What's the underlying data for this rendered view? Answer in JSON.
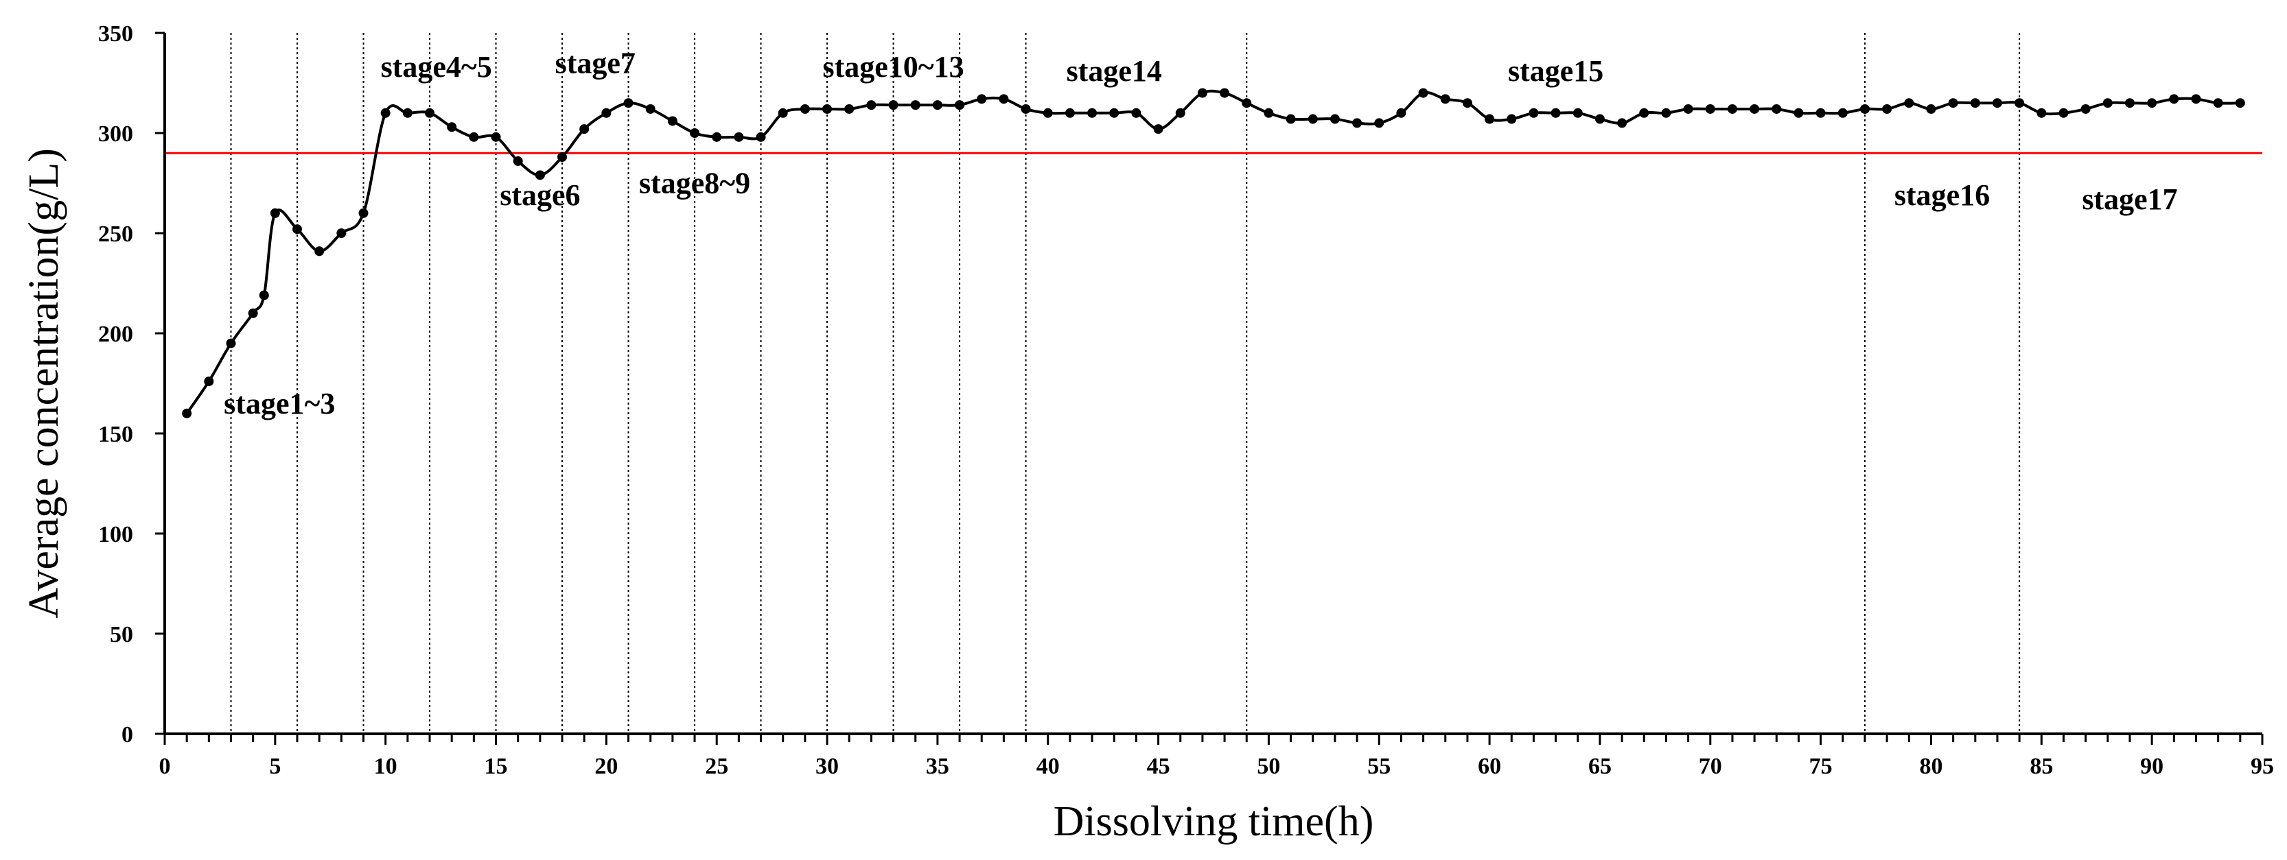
{
  "chart_data": {
    "type": "line",
    "title": "",
    "xlabel": "Dissolving time(h)",
    "ylabel": "Average concentration(g/L)",
    "xlim": [
      0,
      95
    ],
    "ylim": [
      0,
      350
    ],
    "x_ticks": [
      0,
      5,
      10,
      15,
      20,
      25,
      30,
      35,
      40,
      45,
      50,
      55,
      60,
      65,
      70,
      75,
      80,
      85,
      90,
      95
    ],
    "y_ticks": [
      0,
      50,
      100,
      150,
      200,
      250,
      300,
      350
    ],
    "grid": false,
    "line_color": "#000000",
    "reference_line": {
      "y": 290,
      "color": "#ff0000"
    },
    "stage_boundaries": [
      3,
      6,
      9,
      12,
      15,
      18,
      21,
      24,
      27,
      30,
      33,
      36,
      39,
      49,
      77,
      84
    ],
    "stage_labels": [
      {
        "text": "stage1~3",
        "x": 5.2,
        "y": 160
      },
      {
        "text": "stage4~5",
        "x": 12.3,
        "y": 328
      },
      {
        "text": "stage6",
        "x": 17.0,
        "y": 264
      },
      {
        "text": "stage7",
        "x": 19.5,
        "y": 330
      },
      {
        "text": "stage8~9",
        "x": 24.0,
        "y": 270
      },
      {
        "text": "stage10~13",
        "x": 33.0,
        "y": 328
      },
      {
        "text": "stage14",
        "x": 43.0,
        "y": 326
      },
      {
        "text": "stage15",
        "x": 63.0,
        "y": 326
      },
      {
        "text": "stage16",
        "x": 80.5,
        "y": 264
      },
      {
        "text": "stage17",
        "x": 89.0,
        "y": 262
      }
    ],
    "series": [
      {
        "x": [
          1,
          2,
          3,
          4,
          4.5,
          5,
          6,
          7,
          8,
          9,
          10,
          11,
          12,
          13,
          14,
          15,
          16,
          17,
          18,
          19,
          20,
          21,
          22,
          23,
          24,
          25,
          26,
          27,
          28,
          29,
          30,
          31,
          32,
          33,
          34,
          35,
          36,
          37,
          38,
          39,
          40,
          41,
          42,
          43,
          44,
          45,
          46,
          47,
          48,
          49,
          50,
          51,
          52,
          53,
          54,
          55,
          56,
          57,
          58,
          59,
          60,
          61,
          62,
          63,
          64,
          65,
          66,
          67,
          68,
          69,
          70,
          71,
          72,
          73,
          74,
          75,
          76,
          77,
          78,
          79,
          80,
          81,
          82,
          83,
          84,
          85,
          86,
          87,
          88,
          89,
          90,
          91,
          92,
          93,
          94
        ],
        "y": [
          160,
          176,
          195,
          210,
          219,
          260,
          252,
          241,
          250,
          260,
          310,
          310,
          310,
          303,
          298,
          298,
          286,
          279,
          288,
          302,
          310,
          315,
          312,
          306,
          300,
          298,
          298,
          298,
          310,
          312,
          312,
          312,
          314,
          314,
          314,
          314,
          314,
          317,
          317,
          312,
          310,
          310,
          310,
          310,
          310,
          302,
          310,
          320,
          320,
          315,
          310,
          307,
          307,
          307,
          305,
          305,
          310,
          320,
          317,
          315,
          307,
          307,
          310,
          310,
          310,
          307,
          305,
          310,
          310,
          312,
          312,
          312,
          312,
          312,
          310,
          310,
          310,
          312,
          312,
          315,
          312,
          315,
          315,
          315,
          315,
          310,
          310,
          312,
          315,
          315,
          315,
          317,
          317,
          315,
          315
        ]
      }
    ]
  }
}
